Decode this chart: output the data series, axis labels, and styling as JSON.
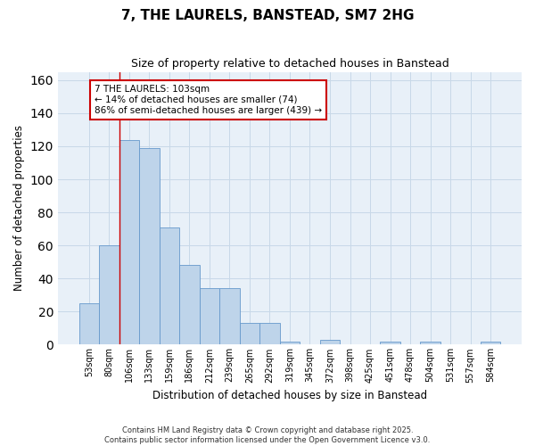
{
  "title": "7, THE LAURELS, BANSTEAD, SM7 2HG",
  "subtitle": "Size of property relative to detached houses in Banstead",
  "xlabel": "Distribution of detached houses by size in Banstead",
  "ylabel": "Number of detached properties",
  "categories": [
    "53sqm",
    "80sqm",
    "106sqm",
    "133sqm",
    "159sqm",
    "186sqm",
    "212sqm",
    "239sqm",
    "265sqm",
    "292sqm",
    "319sqm",
    "345sqm",
    "372sqm",
    "398sqm",
    "425sqm",
    "451sqm",
    "478sqm",
    "504sqm",
    "531sqm",
    "557sqm",
    "584sqm"
  ],
  "values": [
    25,
    60,
    124,
    119,
    71,
    48,
    34,
    34,
    13,
    13,
    2,
    0,
    3,
    0,
    0,
    2,
    0,
    2,
    0,
    0,
    2
  ],
  "bar_color": "#bed4ea",
  "bar_edge_color": "#6699cc",
  "vline_color": "#cc0000",
  "annotation_text": "7 THE LAURELS: 103sqm\n← 14% of detached houses are smaller (74)\n86% of semi-detached houses are larger (439) →",
  "annotation_box_color": "white",
  "annotation_box_edge_color": "#cc0000",
  "ylim": [
    0,
    165
  ],
  "yticks": [
    0,
    20,
    40,
    60,
    80,
    100,
    120,
    140,
    160
  ],
  "grid_color": "#c8d8e8",
  "bg_color": "#e8f0f8",
  "footer1": "Contains HM Land Registry data © Crown copyright and database right 2025.",
  "footer2": "Contains public sector information licensed under the Open Government Licence v3.0."
}
